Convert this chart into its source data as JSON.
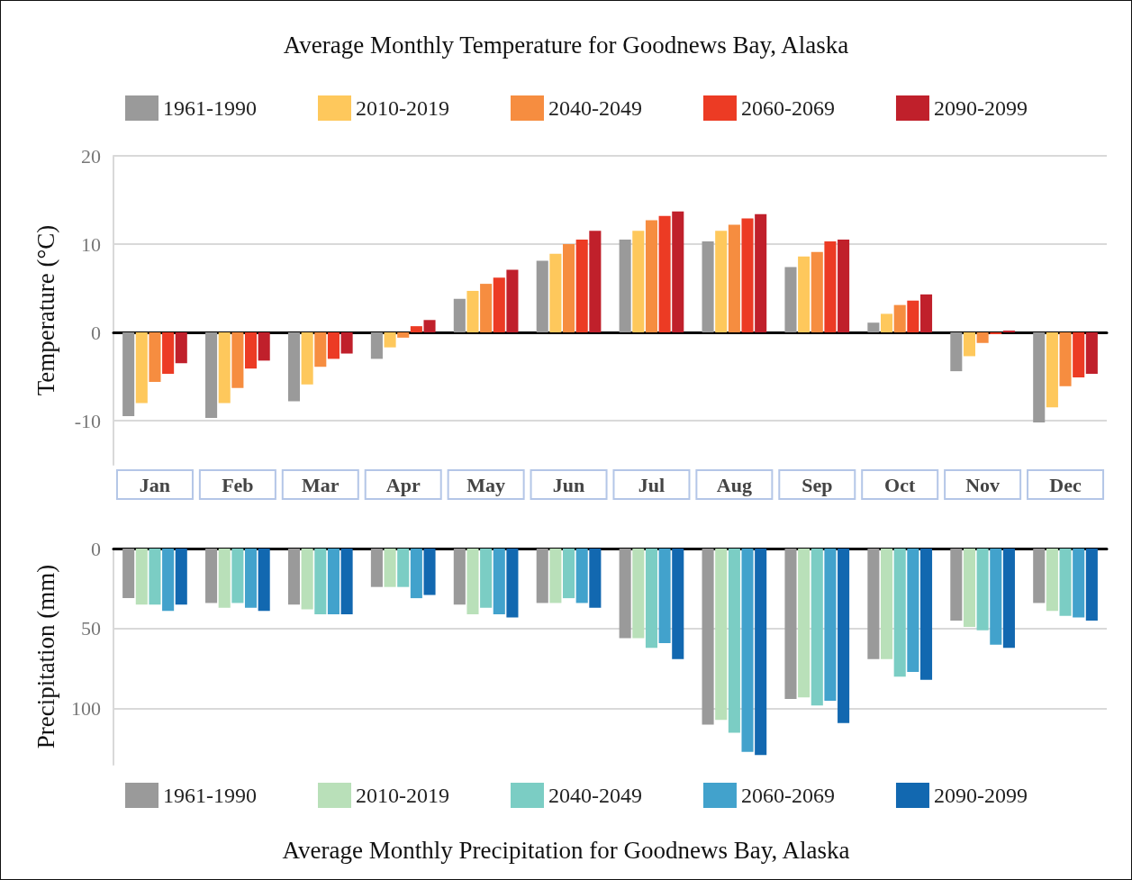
{
  "chart_data": [
    {
      "type": "bar",
      "title": "Average Monthly Temperature for Goodnews Bay, Alaska",
      "ylabel": "Temperature (°C)",
      "categories": [
        "Jan",
        "Feb",
        "Mar",
        "Apr",
        "May",
        "Jun",
        "Jul",
        "Aug",
        "Sep",
        "Oct",
        "Nov",
        "Dec"
      ],
      "series": [
        {
          "name": "1961-1990",
          "color": "#9a9a9a",
          "values": [
            -9.5,
            -9.7,
            -7.8,
            -3.0,
            3.8,
            8.1,
            10.5,
            10.3,
            7.4,
            1.1,
            -4.4,
            -10.2
          ]
        },
        {
          "name": "2010-2019",
          "color": "#fec85c",
          "values": [
            -8.0,
            -8.0,
            -5.9,
            -1.7,
            4.7,
            8.9,
            11.5,
            11.5,
            8.6,
            2.1,
            -2.7,
            -8.5
          ]
        },
        {
          "name": "2040-2049",
          "color": "#f68d40",
          "values": [
            -5.6,
            -6.3,
            -3.9,
            -0.6,
            5.5,
            10.0,
            12.7,
            12.2,
            9.1,
            3.1,
            -1.2,
            -6.1
          ]
        },
        {
          "name": "2060-2069",
          "color": "#ec3b24",
          "values": [
            -4.7,
            -4.1,
            -3.0,
            0.7,
            6.2,
            10.5,
            13.2,
            12.9,
            10.3,
            3.6,
            -0.2,
            -5.1
          ]
        },
        {
          "name": "2090-2099",
          "color": "#c0202b",
          "values": [
            -3.5,
            -3.2,
            -2.4,
            1.4,
            7.1,
            11.5,
            13.7,
            13.4,
            10.5,
            4.3,
            0.2,
            -4.7
          ]
        }
      ],
      "ylim": [
        -15,
        20
      ],
      "yticks": [
        -10,
        0,
        10,
        20
      ],
      "grid": "y",
      "legend": "top"
    },
    {
      "type": "bar",
      "title": "Average Monthly Precipitation for Goodnews Bay, Alaska",
      "ylabel": "Precipitation (mm)",
      "categories": [
        null,
        null,
        null,
        null,
        null,
        null,
        null,
        null,
        null,
        null,
        null,
        null
      ],
      "series": [
        {
          "name": "1961-1990",
          "color": "#9a9a9a",
          "values": [
            31,
            34,
            35,
            24,
            35,
            34,
            56,
            110,
            94,
            69,
            45,
            34
          ]
        },
        {
          "name": "2010-2019",
          "color": "#b9e0b9",
          "values": [
            35,
            37,
            38,
            24,
            41,
            34,
            56,
            107,
            93,
            69,
            49,
            39
          ]
        },
        {
          "name": "2040-2049",
          "color": "#7bcdc4",
          "values": [
            35,
            34,
            41,
            24,
            37,
            31,
            62,
            115,
            98,
            80,
            51,
            42
          ]
        },
        {
          "name": "2060-2069",
          "color": "#42a2cc",
          "values": [
            39,
            37,
            41,
            31,
            41,
            34,
            59,
            127,
            95,
            77,
            60,
            43
          ]
        },
        {
          "name": "2090-2099",
          "color": "#1268b0",
          "values": [
            35,
            39,
            41,
            29,
            43,
            37,
            69,
            129,
            109,
            82,
            62,
            45
          ]
        }
      ],
      "ylim": [
        135,
        0
      ],
      "yticks": [
        0,
        50,
        100
      ],
      "grid": "y",
      "legend": "bottom",
      "tick_labels": "y"
    }
  ]
}
